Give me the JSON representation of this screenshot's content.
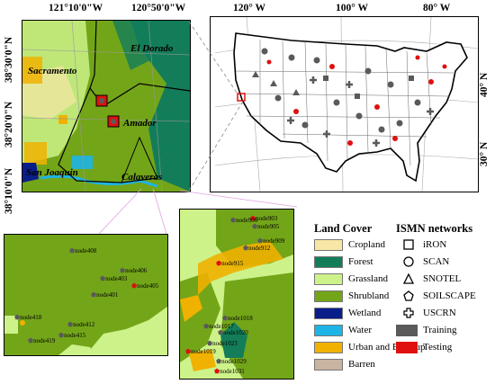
{
  "colors": {
    "cropland": "#f7e6a5",
    "forest": "#137d5a",
    "grassland": "#cdf28a",
    "shrubland": "#73a519",
    "wetland": "#0a1e8a",
    "water": "#1eb4e6",
    "urban": "#f0b100",
    "barren": "#c8b4a0",
    "training": "#5a5a5a",
    "testing": "#e01010"
  },
  "inset_map": {
    "lon_labels": [
      "121°10'0\"W",
      "120°50'0\"W"
    ],
    "lat_labels": [
      "38°30'0\"N",
      "38°20'0\"N",
      "38°10'0\"N"
    ],
    "places": [
      "El Dorado",
      "Sacramento",
      "Amador",
      "San Joaquin",
      "Calaveras"
    ]
  },
  "us_map": {
    "lon_labels": [
      "120° W",
      "100° W",
      "80° W"
    ],
    "lat_labels": [
      "40° N",
      "30° N"
    ]
  },
  "zoom_left": {
    "nodes": [
      "node408",
      "node406",
      "node403",
      "node405",
      "node401",
      "node418",
      "node412",
      "node415",
      "node419"
    ]
  },
  "zoom_right": {
    "nodes": [
      "node903",
      "node906",
      "node905",
      "node909",
      "node912",
      "node915",
      "node1018",
      "node1017",
      "node1020",
      "node1023",
      "node1019",
      "node1029",
      "node1031"
    ]
  },
  "legend": {
    "land_cover_title": "Land Cover",
    "land_cover": [
      {
        "label": "Cropland",
        "color": "#f7e6a5"
      },
      {
        "label": "Forest",
        "color": "#137d5a"
      },
      {
        "label": "Grassland",
        "color": "#cdf28a"
      },
      {
        "label": "Shrubland",
        "color": "#73a519"
      },
      {
        "label": "Wetland",
        "color": "#0a1e8a"
      },
      {
        "label": "Water",
        "color": "#1eb4e6"
      },
      {
        "label": "Urban and Built-up",
        "color": "#f0b100"
      },
      {
        "label": "Barren",
        "color": "#c8b4a0"
      }
    ],
    "networks_title": "ISMN networks",
    "networks": [
      {
        "label": "iRON",
        "icon": "square-icon"
      },
      {
        "label": "SCAN",
        "icon": "circle-icon"
      },
      {
        "label": "SNOTEL",
        "icon": "triangle-icon"
      },
      {
        "label": "SOILSCAPE",
        "icon": "pentagon-icon"
      },
      {
        "label": "USCRN",
        "icon": "cross-icon"
      }
    ],
    "status": [
      {
        "label": "Training",
        "color": "#5a5a5a"
      },
      {
        "label": "Testing",
        "color": "#e01010"
      }
    ]
  }
}
